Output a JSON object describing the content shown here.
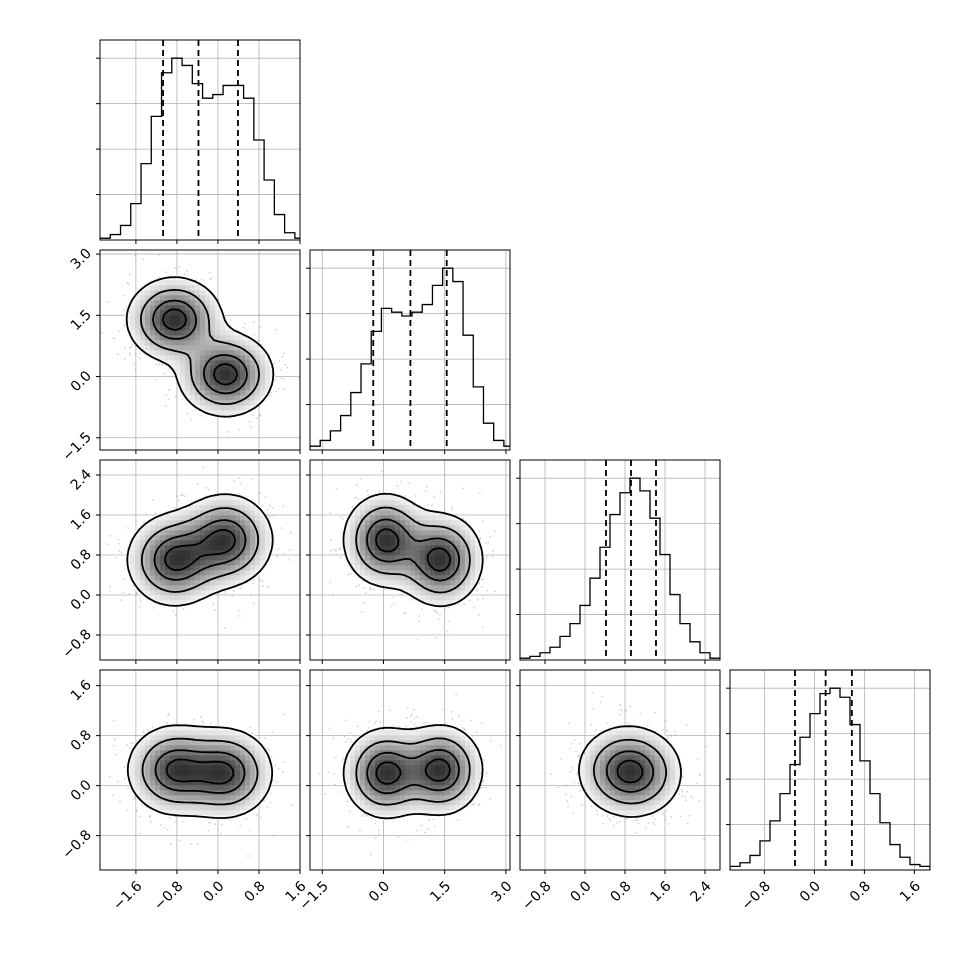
{
  "chart_data": {
    "type": "corner",
    "description_colors": {
      "line": "#000000",
      "grid": "#b0b0b0",
      "points": "#808080",
      "density": "#000000"
    },
    "grid": true,
    "parameters": [
      {
        "index": 0,
        "range": [
          -2.3,
          1.6
        ],
        "ticks": [
          -1.6,
          -0.8,
          0.0,
          0.8,
          1.6
        ],
        "tick_labels": [
          "−1.6",
          "−0.8",
          "0.0",
          "0.8",
          "1.6"
        ],
        "quantiles": [
          -1.07,
          -0.38,
          0.39
        ]
      },
      {
        "index": 1,
        "range": [
          -1.8,
          3.1
        ],
        "ticks": [
          -1.5,
          0.0,
          1.5,
          3.0
        ],
        "tick_labels": [
          "−1.5",
          "0.0",
          "1.5",
          "3.0"
        ],
        "quantiles": [
          -0.25,
          0.66,
          1.55
        ]
      },
      {
        "index": 2,
        "range": [
          -1.3,
          2.7
        ],
        "ticks": [
          -0.8,
          0.0,
          0.8,
          1.6,
          2.4
        ],
        "tick_labels": [
          "−0.8",
          "0.0",
          "0.8",
          "1.6",
          "2.4"
        ],
        "quantiles": [
          0.42,
          0.92,
          1.42
        ]
      },
      {
        "index": 3,
        "range": [
          -1.35,
          1.85
        ],
        "ticks": [
          -0.8,
          0.0,
          0.8,
          1.6
        ],
        "tick_labels": [
          "−0.8",
          "0.0",
          "0.8",
          "1.6"
        ],
        "quantiles": [
          -0.31,
          0.18,
          0.6
        ]
      }
    ],
    "histograms": [
      {
        "param": 0,
        "bins": [
          -2.3,
          -2.1,
          -1.9,
          -1.7,
          -1.5,
          -1.3,
          -1.1,
          -0.9,
          -0.7,
          -0.5,
          -0.3,
          -0.1,
          0.1,
          0.3,
          0.5,
          0.7,
          0.9,
          1.1,
          1.3,
          1.5
        ],
        "counts": [
          0.01,
          0.03,
          0.08,
          0.2,
          0.42,
          0.68,
          0.92,
          1.0,
          0.96,
          0.86,
          0.78,
          0.8,
          0.85,
          0.85,
          0.78,
          0.55,
          0.33,
          0.14,
          0.04,
          0.01
        ]
      },
      {
        "param": 1,
        "bins": [
          -1.8,
          -1.55,
          -1.3,
          -1.05,
          -0.8,
          -0.55,
          -0.3,
          -0.05,
          0.2,
          0.45,
          0.7,
          0.95,
          1.2,
          1.45,
          1.7,
          1.95,
          2.2,
          2.45,
          2.7,
          2.95
        ],
        "counts": [
          0.02,
          0.05,
          0.1,
          0.18,
          0.3,
          0.45,
          0.62,
          0.74,
          0.72,
          0.7,
          0.72,
          0.76,
          0.86,
          0.95,
          0.88,
          0.6,
          0.33,
          0.14,
          0.05,
          0.02
        ]
      },
      {
        "param": 2,
        "bins": [
          -1.3,
          -1.1,
          -0.9,
          -0.7,
          -0.5,
          -0.3,
          -0.1,
          0.1,
          0.3,
          0.5,
          0.7,
          0.9,
          1.1,
          1.3,
          1.5,
          1.7,
          1.9,
          2.1,
          2.3,
          2.5
        ],
        "counts": [
          0.01,
          0.02,
          0.04,
          0.07,
          0.13,
          0.2,
          0.3,
          0.45,
          0.62,
          0.8,
          0.92,
          1.0,
          0.93,
          0.78,
          0.58,
          0.36,
          0.2,
          0.1,
          0.04,
          0.01
        ]
      },
      {
        "param": 3,
        "bins": [
          -1.35,
          -1.19,
          -1.03,
          -0.87,
          -0.71,
          -0.55,
          -0.39,
          -0.23,
          -0.07,
          0.09,
          0.25,
          0.41,
          0.57,
          0.73,
          0.89,
          1.05,
          1.21,
          1.37,
          1.53,
          1.69
        ],
        "counts": [
          0.02,
          0.04,
          0.08,
          0.16,
          0.27,
          0.42,
          0.58,
          0.73,
          0.86,
          0.97,
          1.0,
          0.95,
          0.8,
          0.6,
          0.42,
          0.26,
          0.14,
          0.07,
          0.03,
          0.02
        ]
      }
    ],
    "mixture_components": [
      {
        "weight": 0.5,
        "mean": [
          -0.85,
          1.4,
          0.7,
          0.25
        ],
        "sd": [
          0.45,
          0.5,
          0.45,
          0.35
        ]
      },
      {
        "weight": 0.5,
        "mean": [
          0.15,
          0.05,
          1.1,
          0.2
        ],
        "sd": [
          0.45,
          0.5,
          0.45,
          0.35
        ]
      }
    ],
    "contour_levels": [
      0.12,
      0.35,
      0.65,
      0.88
    ]
  }
}
